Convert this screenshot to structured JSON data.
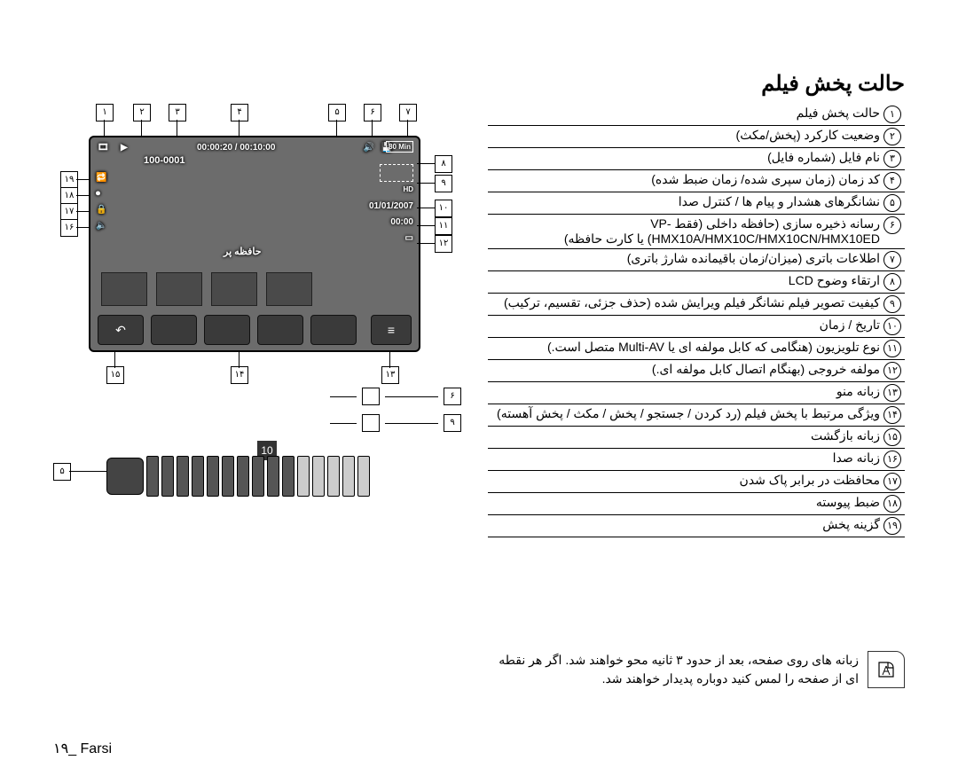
{
  "title": "حالت پخش فیلم",
  "legend": [
    {
      "n": "۱",
      "t": "حالت پخش فیلم"
    },
    {
      "n": "۲",
      "t": "وضعیت کارکرد (پخش/مکث)"
    },
    {
      "n": "۳",
      "t": "نام فایل (شماره فایل)"
    },
    {
      "n": "۴",
      "t": "کد زمان (زمان سپری شده/ زمان ضبط شده)"
    },
    {
      "n": "۵",
      "t": "نشانگرهای هشدار و پیام ها / کنترل صدا"
    },
    {
      "n": "۶",
      "t": "رسانه ذخیره سازی (حافظه داخلی (فقط VP-HMX10A/HMX10C/HMX10CN/HMX10ED) یا کارت حافظه)"
    },
    {
      "n": "۷",
      "t": "اطلاعات باتری (میزان/زمان باقیمانده شارژ باتری)"
    },
    {
      "n": "۸",
      "t": "ارتقاء وضوح LCD"
    },
    {
      "n": "۹",
      "t": "کیفیت تصویر فیلم نشانگر فیلم ویرایش شده (حذف جزئی، تقسیم، ترکیب)"
    },
    {
      "n": "۱۰",
      "t": "تاریخ / زمان"
    },
    {
      "n": "۱۱",
      "t": "نوع تلویزیون (هنگامی که کابل مولفه ای یا Multi-AV متصل است.)"
    },
    {
      "n": "۱۲",
      "t": "مولفه خروجی (بهنگام اتصال کابل مولفه ای.)"
    },
    {
      "n": "۱۳",
      "t": "زبانه منو"
    },
    {
      "n": "۱۴",
      "t": "ویژگی مرتبط با پخش فیلم (رد کردن / جستجو / پخش / مکث / پخش آهسته)"
    },
    {
      "n": "۱۵",
      "t": "زبانه بازگشت"
    },
    {
      "n": "۱۶",
      "t": "زبانه صدا"
    },
    {
      "n": "۱۷",
      "t": "محافظت در برابر پاک شدن"
    },
    {
      "n": "۱۸",
      "t": "ضبط پیوسته"
    },
    {
      "n": "۱۹",
      "t": "گزینه پخش"
    }
  ],
  "lcd": {
    "file_no": "100-0001",
    "timecode": "00:00:20 / 00:10:00",
    "batt_min": "80 Min",
    "date": "01/01/2007",
    "time": "00:00",
    "memory_label": "حافظه پر",
    "back_icon": "↶",
    "menu_icon": "≡",
    "vol_value": "10",
    "callouts_top": [
      "۱",
      "۲",
      "۳",
      "۴",
      "۵",
      "۶",
      "۷"
    ],
    "callouts_right": [
      "۸",
      "۹",
      "۱۰",
      "۱۱",
      "۱۲"
    ],
    "callouts_left": [
      "۱۹",
      "۱۸",
      "۱۷",
      "۱۶"
    ],
    "callouts_bottom": [
      "۱۵",
      "۱۴",
      "۱۳"
    ],
    "right_blocks": [
      "۶",
      "۹"
    ],
    "vol_callout": "۵",
    "vol_fill_count": 10,
    "vol_total_bars": 15,
    "fill_color": "#555",
    "empty_color": "#ccc"
  },
  "note": "زبانه های روی صفحه، بعد از حدود ۳ ثانیه محو خواهند شد. اگر هر نقطه ای از صفحه را لمس کنید دوباره پدیدار خواهند شد.",
  "footer": "۱۹_ Farsi"
}
